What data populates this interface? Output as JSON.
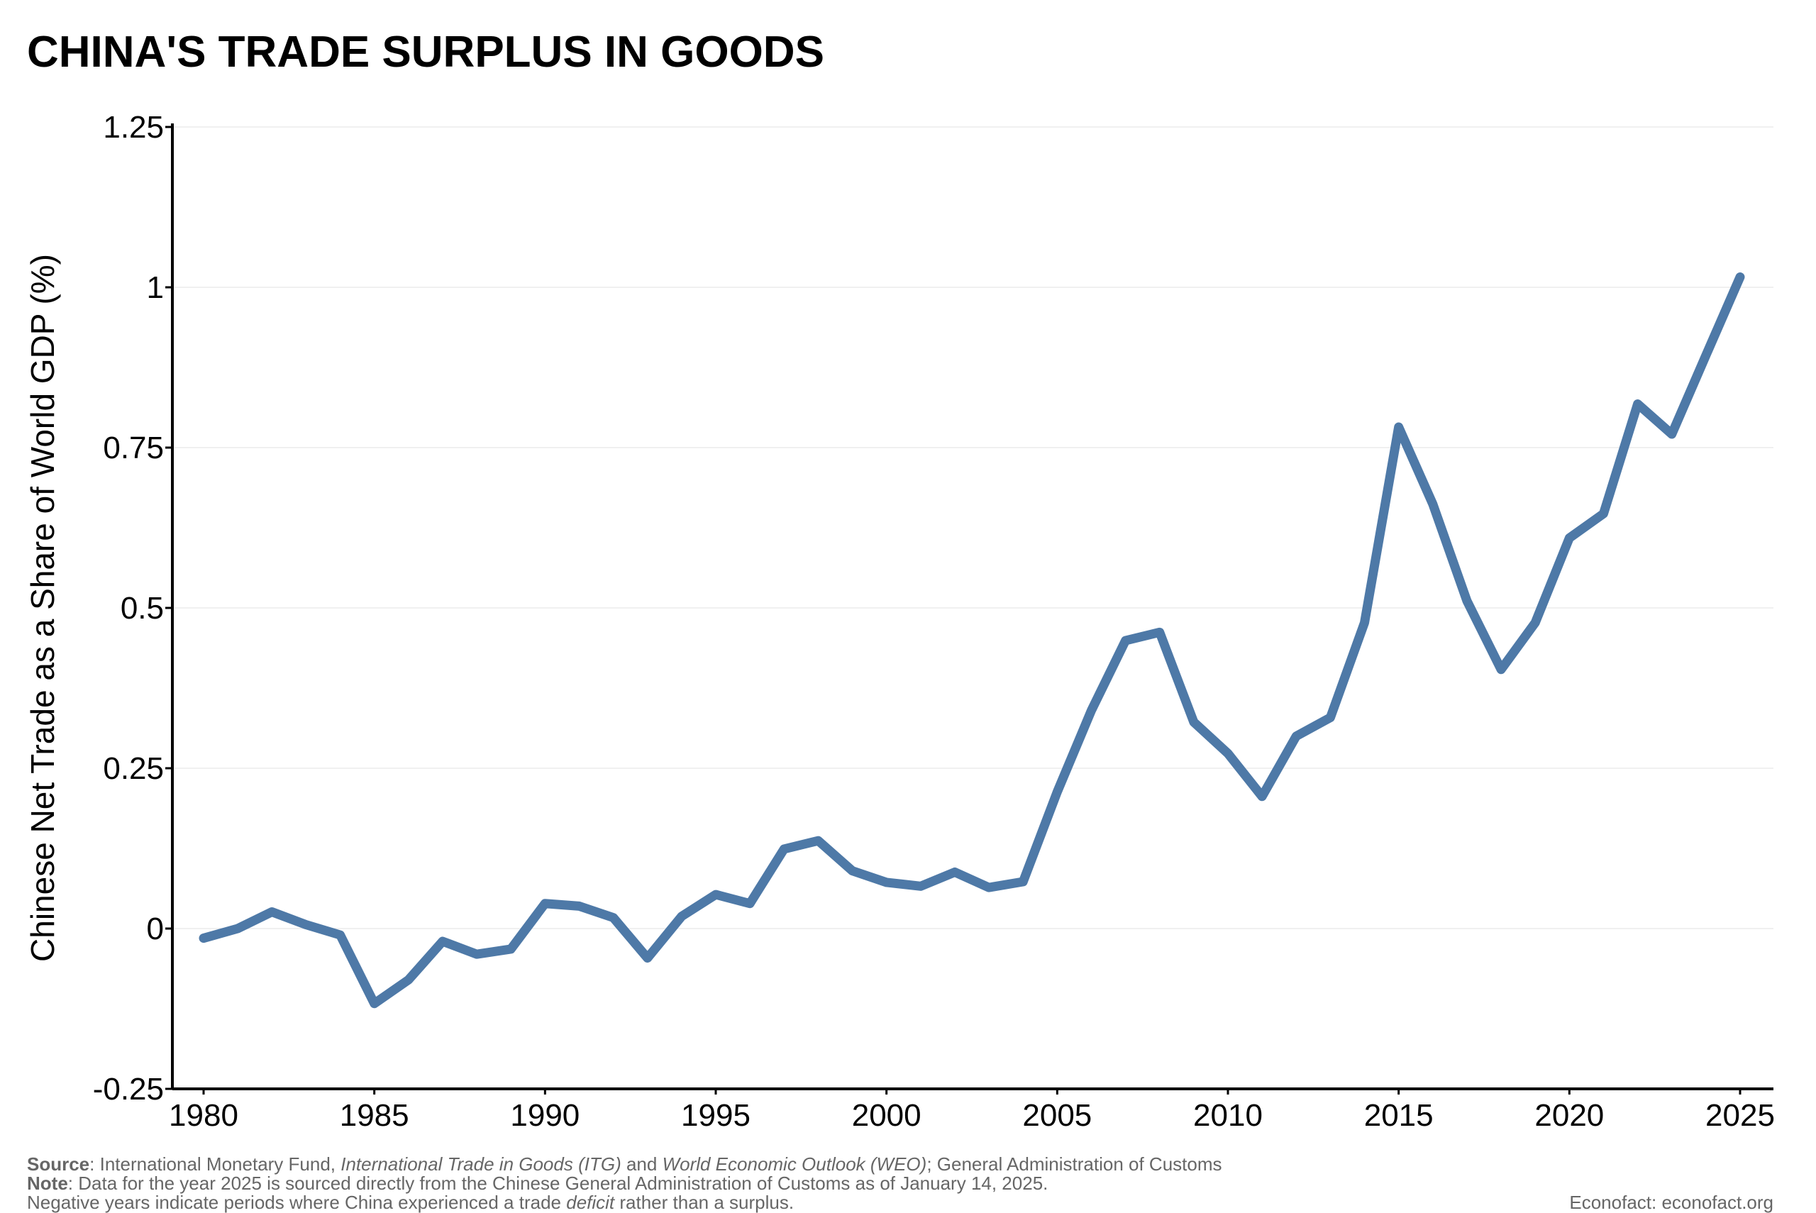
{
  "chart_data": {
    "type": "line",
    "title": "CHINA'S TRADE SURPLUS IN GOODS",
    "xlabel": "",
    "ylabel": "Chinese Net Trade as a Share of World GDP (%)",
    "xlim": [
      1980,
      2025
    ],
    "ylim": [
      -0.25,
      1.25
    ],
    "xticks": [
      1980,
      1985,
      1990,
      1995,
      2000,
      2005,
      2010,
      2015,
      2020,
      2025
    ],
    "yticks": [
      -0.25,
      0,
      0.25,
      0.5,
      0.75,
      1,
      1.25
    ],
    "ytick_labels": [
      "-0.25",
      "0",
      "0.25",
      "0.5",
      "0.75",
      "1",
      "1.25"
    ],
    "grid": "horizontal, faint",
    "line_color": "#4e79a7",
    "x": [
      1980,
      1981,
      1982,
      1983,
      1984,
      1985,
      1986,
      1987,
      1988,
      1989,
      1990,
      1991,
      1992,
      1993,
      1994,
      1995,
      1996,
      1997,
      1998,
      1999,
      2000,
      2001,
      2002,
      2003,
      2004,
      2005,
      2006,
      2007,
      2008,
      2009,
      2010,
      2011,
      2012,
      2013,
      2014,
      2015,
      2016,
      2017,
      2018,
      2019,
      2020,
      2021,
      2022,
      2023,
      2024,
      2025
    ],
    "values": [
      -0.015,
      0.0,
      0.026,
      0.006,
      -0.01,
      -0.117,
      -0.08,
      -0.02,
      -0.04,
      -0.032,
      0.039,
      0.035,
      0.017,
      -0.046,
      0.019,
      0.053,
      0.039,
      0.124,
      0.137,
      0.09,
      0.072,
      0.066,
      0.088,
      0.064,
      0.073,
      0.213,
      0.34,
      0.449,
      0.462,
      0.322,
      0.273,
      0.206,
      0.3,
      0.329,
      0.477,
      0.782,
      0.662,
      0.511,
      0.404,
      0.477,
      0.609,
      0.647,
      0.818,
      0.771,
      0.894,
      1.016
    ]
  },
  "footer": {
    "source_label": "Source",
    "source_text_1": ": International Monetary Fund, ",
    "source_italic_1": "International Trade in Goods (ITG)",
    "source_text_2": " and ",
    "source_italic_2": "World Economic Outlook (WEO)",
    "source_text_3": "; General Administration of Customs",
    "note_label": "Note",
    "note_text": ": Data for the year 2025 is sourced directly from the Chinese General Administration of Customs as of January 14, 2025.",
    "neg_text_1": "Negative years indicate periods where China experienced a trade ",
    "neg_italic": "deficit",
    "neg_text_2": " rather than a surplus.",
    "credit": "Econofact: econofact.org"
  }
}
